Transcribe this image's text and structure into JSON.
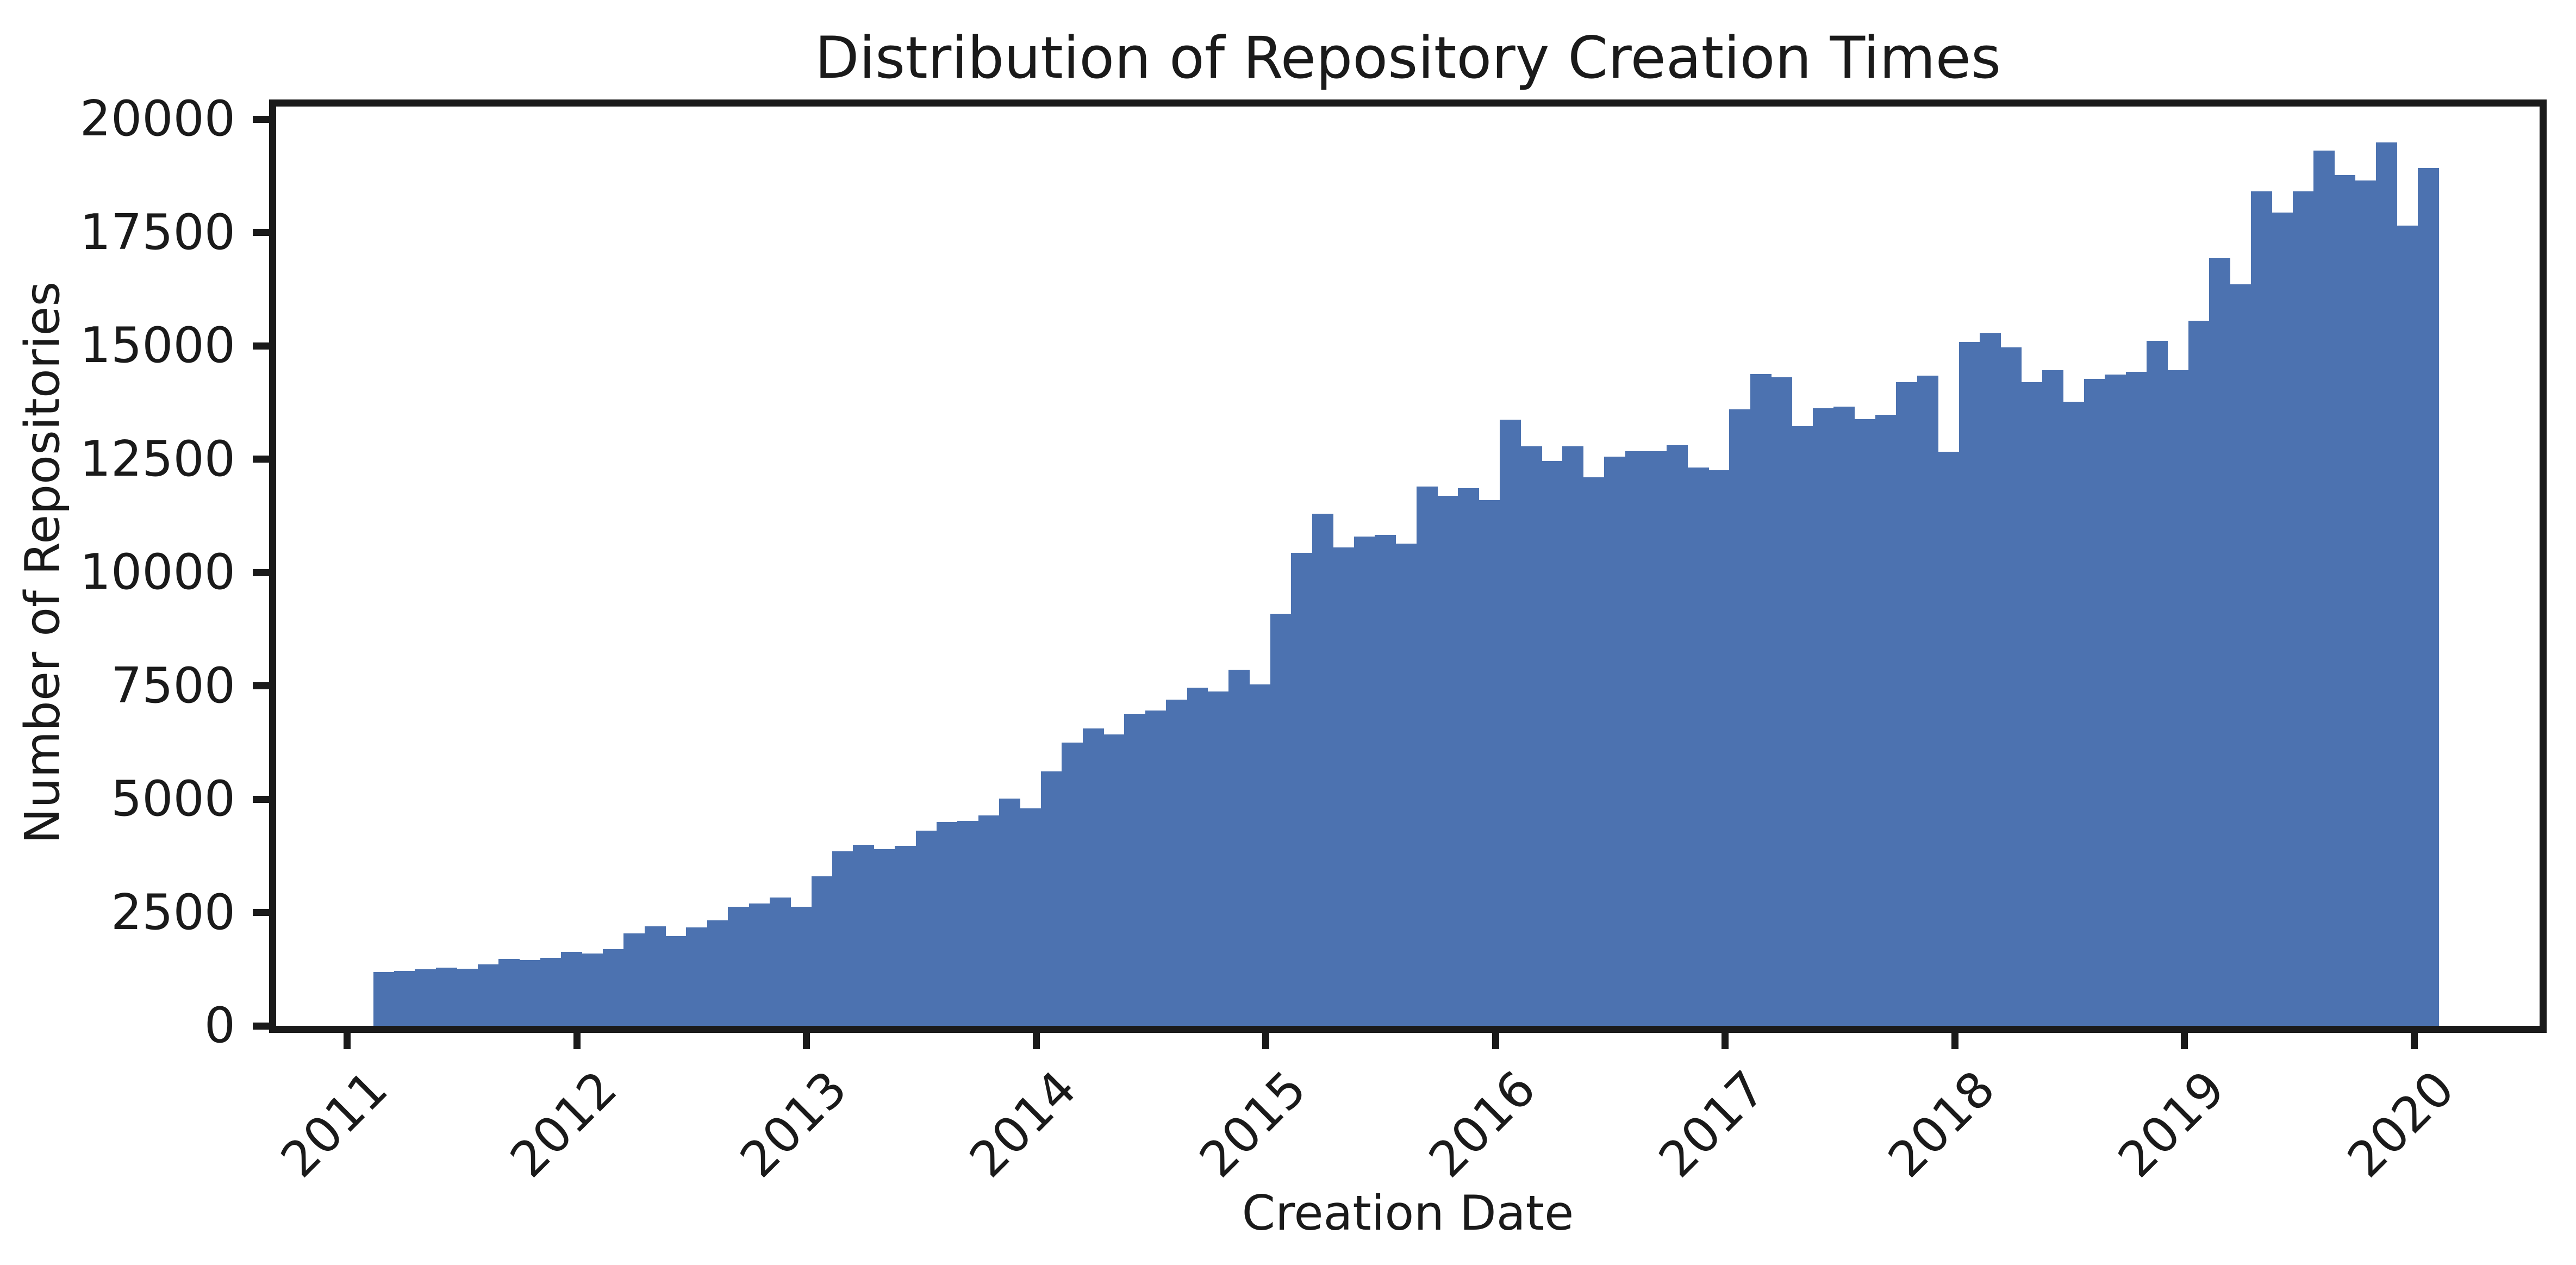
{
  "figure": {
    "title": "Distribution of Repository Creation Times",
    "xlabel": "Creation Date",
    "ylabel": "Number of Repositories"
  },
  "colors": {
    "bar": "#4C72B0",
    "axis": "#1a1a1a",
    "background": "#ffffff"
  },
  "chart_data": {
    "type": "bar",
    "title": "Distribution of Repository Creation Times",
    "xlabel": "Creation Date",
    "ylabel": "Number of Repositories",
    "legend": null,
    "grid": false,
    "x_tick_labels": [
      "2011",
      "2012",
      "2013",
      "2014",
      "2015",
      "2016",
      "2017",
      "2018",
      "2019",
      "2020"
    ],
    "y_ticks": [
      0,
      2500,
      5000,
      7500,
      10000,
      12500,
      15000,
      17500,
      20000
    ],
    "ylim": [
      0,
      20280
    ],
    "x_range_years": [
      2011.12,
      2020.21
    ],
    "bins": 99,
    "values": [
      1190,
      1210,
      1250,
      1280,
      1260,
      1350,
      1480,
      1450,
      1500,
      1625,
      1590,
      1690,
      2040,
      2190,
      1980,
      2170,
      2330,
      2630,
      2700,
      2830,
      2630,
      3300,
      3850,
      3990,
      3900,
      3970,
      4300,
      4500,
      4520,
      4640,
      5015,
      4800,
      5615,
      6250,
      6560,
      6430,
      6880,
      6950,
      7200,
      7460,
      7370,
      7850,
      7530,
      9090,
      10430,
      11290,
      10550,
      10790,
      10830,
      10630,
      11900,
      11690,
      11860,
      11600,
      13370,
      12780,
      12460,
      12780,
      12100,
      12550,
      12670,
      12670,
      12800,
      12320,
      12260,
      13600,
      14380,
      14310,
      13220,
      13620,
      13660,
      13380,
      13480,
      14200,
      14340,
      12660,
      15080,
      15280,
      14970,
      14200,
      14460,
      13760,
      14270,
      14360,
      14420,
      15110,
      14460,
      15550,
      16930,
      16350,
      18410,
      17940,
      18410,
      19300,
      18770,
      18650,
      19480,
      17650,
      18920
    ]
  }
}
